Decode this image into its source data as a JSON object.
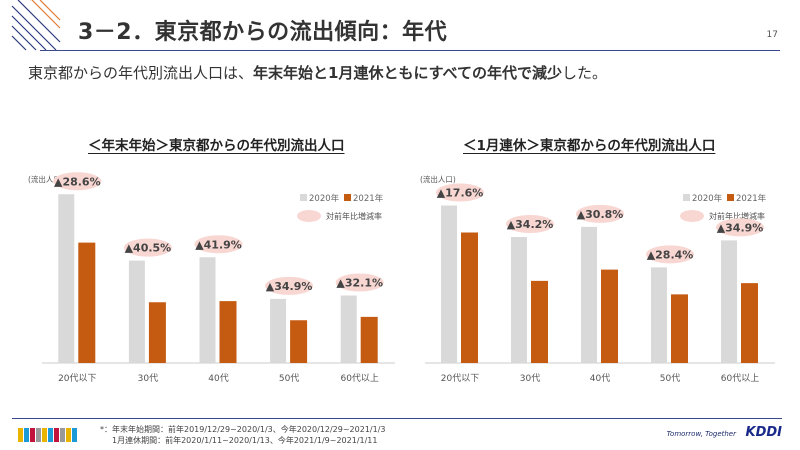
{
  "header": {
    "title": "3－2．東京都からの流出傾向：年代",
    "page_number": "17"
  },
  "lead": {
    "part1": "東京都からの年代別流出人口は、",
    "bold": "年末年始と1月連休ともにすべての年代で減少",
    "part2": "した。"
  },
  "colors": {
    "y2020": "#d9d9d9",
    "y2021": "#c55a11",
    "bubble": "#f8d7d3",
    "accent": "#3a4a8a"
  },
  "chart_data": [
    {
      "type": "bar",
      "title": "＜年末年始＞東京都からの年代別流出人口",
      "ylabel": "(流出人口)",
      "categories": [
        "20代以下",
        "30代",
        "40代",
        "50代",
        "60代以上"
      ],
      "series": [
        {
          "name": "2020年",
          "values": [
            150,
            91,
            94,
            57,
            60
          ]
        },
        {
          "name": "2021年",
          "values": [
            107,
            54,
            55,
            38,
            41
          ]
        }
      ],
      "rate_legend": "対前年比増減率",
      "rates": [
        "▲28.6%",
        "▲40.5%",
        "▲41.9%",
        "▲34.9%",
        "▲32.1%"
      ],
      "ylim": [
        0,
        160
      ],
      "note": "values relative (no axis scale shown)"
    },
    {
      "type": "bar",
      "title": "＜1月連休＞東京都からの年代別流出人口",
      "ylabel": "(流出人口)",
      "categories": [
        "20代以下",
        "30代",
        "40代",
        "50代",
        "60代以上"
      ],
      "series": [
        {
          "name": "2020年",
          "values": [
            140,
            112,
            121,
            85,
            109
          ]
        },
        {
          "name": "2021年",
          "values": [
            116,
            73,
            83,
            61,
            71
          ]
        }
      ],
      "rate_legend": "対前年比増減率",
      "rates": [
        "▲17.6%",
        "▲34.2%",
        "▲30.8%",
        "▲28.4%",
        "▲34.9%"
      ],
      "ylim": [
        0,
        160
      ],
      "note": "values relative (no axis scale shown)"
    }
  ],
  "footer": {
    "note1": "*：年末年始期間：前年2019/12/29~2020/1/3、今年2020/12/29~2021/1/3",
    "note2": "1月連休期間：前年2020/1/11~2020/1/13、今年2021/1/9~2021/1/11",
    "tagline": "Tomorrow, Together",
    "logo": "KDDI"
  }
}
